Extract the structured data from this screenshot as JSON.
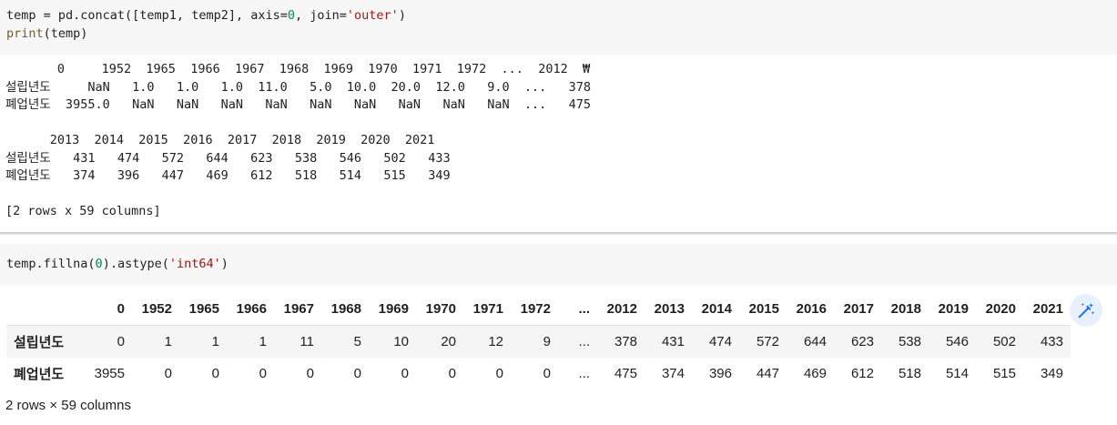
{
  "cell1": {
    "code_lines": [
      [
        {
          "t": "temp = pd.concat([temp1, temp2], axis=",
          "c": "plain"
        },
        {
          "t": "0",
          "c": "num"
        },
        {
          "t": ", join=",
          "c": "plain"
        },
        {
          "t": "'outer'",
          "c": "str"
        },
        {
          "t": ")",
          "c": "plain"
        }
      ],
      [
        {
          "t": "print",
          "c": "kw"
        },
        {
          "t": "(temp)",
          "c": "plain"
        }
      ]
    ],
    "output": "       0     1952  1965  1966  1967  1968  1969  1970  1971  1972  ...  2012  ₩\n설립년도     NaN   1.0   1.0   1.0  11.0   5.0  10.0  20.0  12.0   9.0  ...   378\n폐업년도  3955.0   NaN   NaN   NaN   NaN   NaN   NaN   NaN   NaN   NaN  ...   475\n\n      2013  2014  2015  2016  2017  2018  2019  2020  2021\n설립년도   431   474   572   644   623   538   546   502   433\n폐업년도   374   396   447   469   612   518   514   515   349\n\n[2 rows x 59 columns]"
  },
  "cell2": {
    "code_lines": [
      [
        {
          "t": "temp.fillna(",
          "c": "plain"
        },
        {
          "t": "0",
          "c": "num"
        },
        {
          "t": ").astype(",
          "c": "plain"
        },
        {
          "t": "'int64'",
          "c": "str"
        },
        {
          "t": ")",
          "c": "plain"
        }
      ]
    ]
  },
  "dataframe": {
    "columns": [
      "0",
      "1952",
      "1965",
      "1966",
      "1967",
      "1968",
      "1969",
      "1970",
      "1971",
      "1972",
      "...",
      "2012",
      "2013",
      "2014",
      "2015",
      "2016",
      "2017",
      "2018",
      "2019",
      "2020",
      "2021"
    ],
    "rows": [
      {
        "index": "설립년도",
        "values": [
          "0",
          "1",
          "1",
          "1",
          "11",
          "5",
          "10",
          "20",
          "12",
          "9",
          "...",
          "378",
          "431",
          "474",
          "572",
          "644",
          "623",
          "538",
          "546",
          "502",
          "433"
        ]
      },
      {
        "index": "폐업년도",
        "values": [
          "3955",
          "0",
          "0",
          "0",
          "0",
          "0",
          "0",
          "0",
          "0",
          "0",
          "...",
          "475",
          "374",
          "396",
          "447",
          "469",
          "612",
          "518",
          "514",
          "515",
          "349"
        ]
      }
    ],
    "shape_text": "2 rows × 59 columns"
  },
  "icons": {
    "magic": "magic-wand-icon"
  }
}
